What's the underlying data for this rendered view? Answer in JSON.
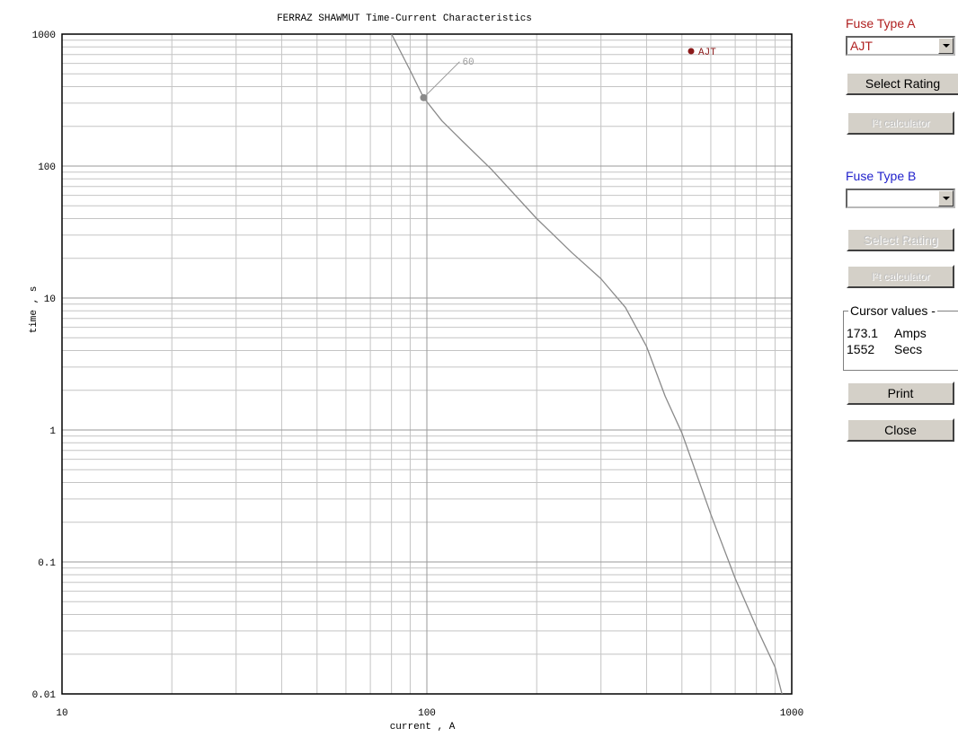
{
  "chart_data": {
    "type": "line",
    "title": "FERRAZ SHAWMUT Time-Current Characteristics",
    "xlabel": "current , A",
    "ylabel": "time , s",
    "xscale": "log",
    "yscale": "log",
    "xlim": [
      10,
      1000
    ],
    "ylim": [
      0.01,
      1000
    ],
    "x_ticks": [
      "10",
      "100",
      "1000"
    ],
    "y_ticks": [
      "0.01",
      "0.1",
      "1",
      "10",
      "100",
      "1000"
    ],
    "grid": true,
    "legend": "AJT",
    "series": [
      {
        "name": "AJT",
        "color": "#8a8a8a",
        "x": [
          80,
          90,
          98,
          110,
          125,
          150,
          200,
          250,
          300,
          350,
          400,
          450,
          500,
          600,
          700,
          800,
          900,
          940
        ],
        "y": [
          1000,
          530,
          330,
          220,
          155,
          95,
          40,
          22,
          14,
          8.5,
          4.3,
          1.8,
          0.95,
          0.23,
          0.075,
          0.032,
          0.016,
          0.01
        ]
      }
    ],
    "annotations": [
      {
        "label": "60",
        "x": 98,
        "y": 330
      }
    ]
  },
  "panel": {
    "fuse_a": {
      "label": "Fuse Type A",
      "selected": "AJT",
      "select_rating": "Select Rating",
      "i2t_calculator": "I²t calculator"
    },
    "fuse_b": {
      "label": "Fuse Type B",
      "selected": "",
      "select_rating": "Select Rating",
      "i2t_calculator": "I²t calculator"
    },
    "cursor": {
      "title": "Cursor values -",
      "amps_value": "173.1",
      "amps_unit": "Amps",
      "secs_value": "1552",
      "secs_unit": "Secs"
    },
    "print_label": "Print",
    "close_label": "Close"
  },
  "colors": {
    "fuse_a": "#b02020",
    "fuse_b": "#2222cc",
    "curve": "#8a8a8a",
    "legend_marker": "#8b1a1a"
  }
}
